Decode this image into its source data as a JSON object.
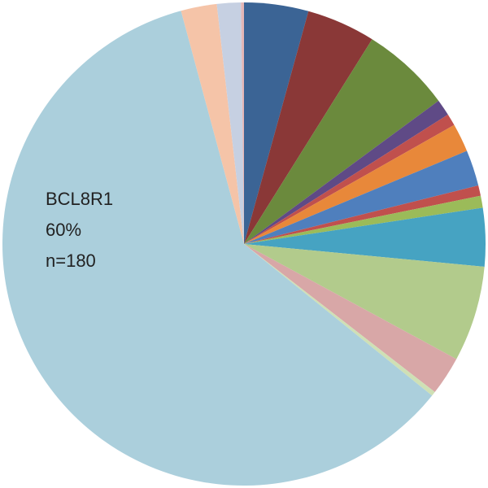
{
  "chart_data": {
    "type": "pie",
    "categories": [
      null,
      null,
      null,
      null,
      null,
      null,
      null,
      null,
      null,
      null,
      null,
      null,
      null,
      "BCL8R1",
      null,
      null,
      null
    ],
    "values": [
      4.3,
      4.6,
      6,
      1.1,
      0.8,
      1.9,
      2.4,
      0.7,
      0.8,
      3.9,
      6.4,
      2.6,
      0.3,
      60,
      2.4,
      1.6,
      0.2
    ],
    "value_labels": [
      null,
      null,
      null,
      null,
      null,
      null,
      null,
      null,
      null,
      null,
      null,
      null,
      null,
      "60%",
      null,
      null,
      null
    ],
    "count_labels": [
      null,
      null,
      null,
      null,
      null,
      null,
      null,
      null,
      null,
      null,
      null,
      null,
      null,
      "n=180",
      null,
      null,
      null
    ],
    "colors": [
      "#3b6495",
      "#8a3837",
      "#6b8a3d",
      "#5f4a86",
      "#c0504d",
      "#e8883a",
      "#4f7fbd",
      "#c0504d",
      "#9bbb59",
      "#46a3c2",
      "#b2cb8c",
      "#d8a7a7",
      "#cfe0b5",
      "#abcfdc",
      "#f5c4a8",
      "#c6d0e2",
      "#e4b6b6"
    ],
    "start_angle": 0,
    "direction": "clockwise"
  }
}
